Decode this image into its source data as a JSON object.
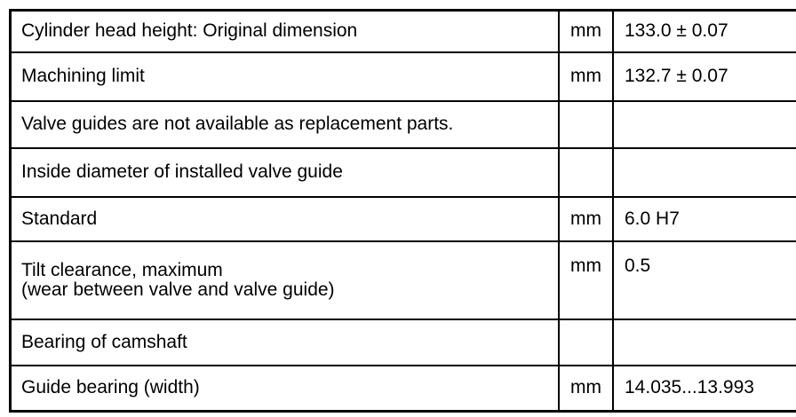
{
  "document": {
    "kind": "specification-table",
    "colors": {
      "background": "#ffffff",
      "border": "#000000",
      "text": "#000000"
    }
  },
  "rows": [
    {
      "label": "Cylinder head height: Original dimension",
      "unit": "mm",
      "value": "133.0 ± 0.07"
    },
    {
      "label": "Machining limit",
      "unit": "mm",
      "value": "132.7 ± 0.07"
    },
    {
      "label": "Valve guides are not available as replacement parts.",
      "unit": "",
      "value": ""
    },
    {
      "label": "Inside diameter of installed valve guide",
      "unit": "",
      "value": ""
    },
    {
      "label": "Standard",
      "unit": "mm",
      "value": "6.0 H7"
    },
    {
      "label": "Tilt clearance, maximum",
      "label2": "(wear between valve and valve guide)",
      "unit": "mm",
      "value": "0.5"
    },
    {
      "label": "Bearing of camshaft",
      "unit": "",
      "value": ""
    },
    {
      "label": "Guide bearing (width)",
      "unit": "mm",
      "value": "14.035...13.993"
    }
  ]
}
